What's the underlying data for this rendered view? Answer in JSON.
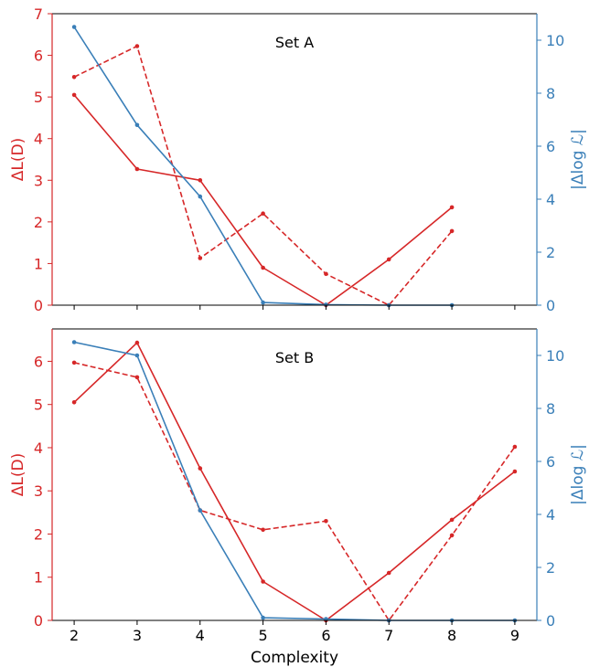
{
  "chart_data": [
    {
      "type": "line",
      "title": "Set A",
      "x": [
        2,
        3,
        4,
        5,
        6,
        7,
        8
      ],
      "xlim": [
        1.65,
        9.35
      ],
      "xticks": [
        2,
        3,
        4,
        5,
        6,
        7,
        8,
        9
      ],
      "xticklabels_visible": false,
      "ylabel_left": "ΔL(D)",
      "ylim_left": [
        0,
        7
      ],
      "yticks_left": [
        0,
        1,
        2,
        3,
        4,
        5,
        6,
        7
      ],
      "ylabel_right": "|Δlog ℒ|",
      "ylim_right": [
        0,
        11
      ],
      "yticks_right": [
        0,
        2,
        4,
        6,
        8,
        10
      ],
      "series": [
        {
          "axis": "left",
          "color": "#d62728",
          "dashed": false,
          "values": [
            5.05,
            3.27,
            3.0,
            0.9,
            0.0,
            1.1,
            2.35
          ]
        },
        {
          "axis": "left",
          "color": "#d62728",
          "dashed": true,
          "values": [
            5.48,
            6.22,
            1.13,
            2.2,
            0.75,
            0.0,
            1.78
          ]
        },
        {
          "axis": "right",
          "color": "#3a7fb8",
          "dashed": false,
          "values": [
            10.5,
            6.8,
            4.1,
            0.1,
            0.02,
            0.0,
            0.0
          ]
        }
      ]
    },
    {
      "type": "line",
      "title": "Set B",
      "x": [
        2,
        3,
        4,
        5,
        6,
        7,
        8,
        9
      ],
      "xlim": [
        1.65,
        9.35
      ],
      "xticks": [
        2,
        3,
        4,
        5,
        6,
        7,
        8,
        9
      ],
      "xticklabels": [
        "2",
        "3",
        "4",
        "5",
        "6",
        "7",
        "8",
        "9"
      ],
      "xlabel": "Complexity",
      "ylabel_left": "ΔL(D)",
      "ylim_left": [
        0,
        6.75
      ],
      "yticks_left": [
        0,
        1,
        2,
        3,
        4,
        5,
        6
      ],
      "ylabel_right": "|Δlog ℒ|",
      "ylim_right": [
        0,
        11
      ],
      "yticks_right": [
        0,
        2,
        4,
        6,
        8,
        10
      ],
      "series": [
        {
          "axis": "left",
          "color": "#d62728",
          "dashed": false,
          "values": [
            5.05,
            6.43,
            3.52,
            0.9,
            0.0,
            1.1,
            2.33,
            3.45
          ]
        },
        {
          "axis": "left",
          "color": "#d62728",
          "dashed": true,
          "values": [
            5.97,
            5.63,
            2.55,
            2.1,
            2.3,
            0.0,
            1.97,
            4.02
          ]
        },
        {
          "axis": "right",
          "color": "#3a7fb8",
          "dashed": false,
          "values": [
            10.5,
            10.0,
            4.15,
            0.1,
            0.05,
            0.0,
            0.0,
            0.0
          ]
        }
      ]
    }
  ]
}
